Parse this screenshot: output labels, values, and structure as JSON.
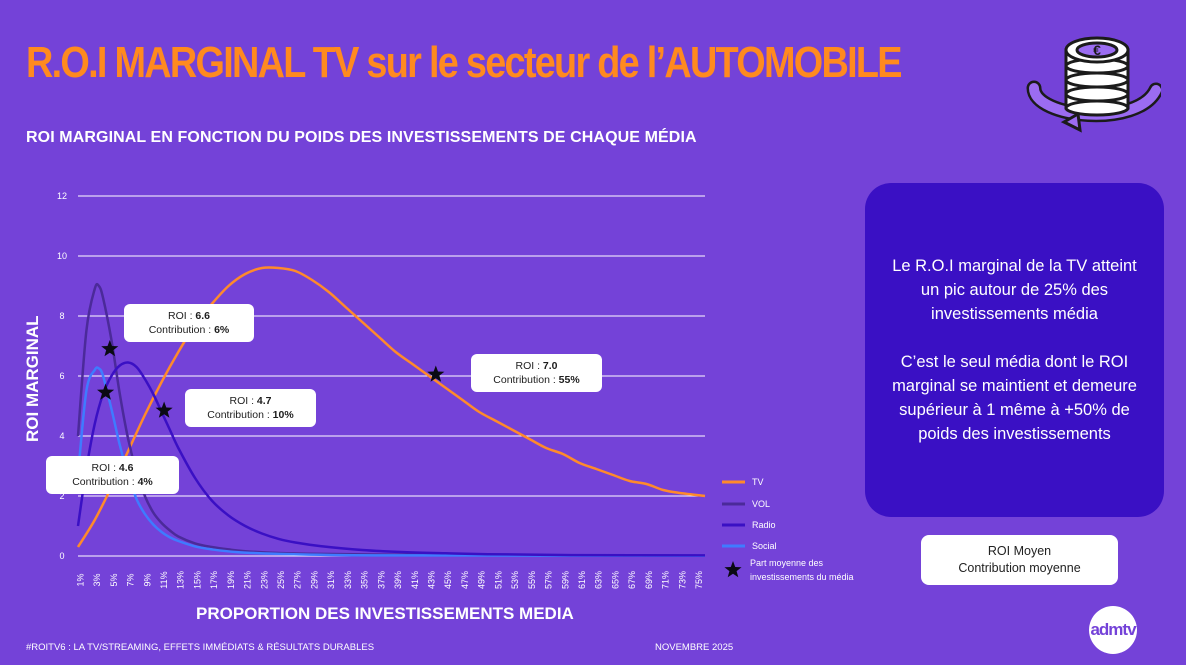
{
  "title": "R.O.I MARGINAL TV sur le secteur de l’AUTOMOBILE",
  "subtitle": "ROI MARGINAL EN FONCTION DU POIDS DES INVESTISSEMENTS DE CHAQUE MÉDIA",
  "chart_data": {
    "type": "line",
    "ylabel": "ROI MARGINAL",
    "xlabel": "PROPORTION DES INVESTISSEMENTS MEDIA",
    "ylim": [
      0,
      12
    ],
    "yticks": [
      0,
      2,
      4,
      6,
      8,
      10,
      12
    ],
    "x_tick_labels": [
      "1%",
      "3%",
      "5%",
      "7%",
      "9%",
      "11%",
      "13%",
      "15%",
      "17%",
      "19%",
      "21%",
      "23%",
      "25%",
      "27%",
      "29%",
      "31%",
      "33%",
      "35%",
      "37%",
      "39%",
      "41%",
      "43%",
      "45%",
      "47%",
      "49%",
      "51%",
      "53%",
      "55%",
      "57%",
      "59%",
      "61%",
      "63%",
      "65%",
      "67%",
      "69%",
      "71%",
      "73%",
      "75%"
    ],
    "xlim": [
      1,
      76
    ],
    "grid": true,
    "legend_position": "bottom-right",
    "series": [
      {
        "name": "TV",
        "color": "#FF8A2B",
        "x": [
          1,
          3,
          5,
          7,
          9,
          11,
          13,
          15,
          17,
          19,
          21,
          23,
          25,
          27,
          29,
          31,
          33,
          35,
          37,
          39,
          41,
          43,
          45,
          47,
          49,
          51,
          53,
          55,
          57,
          59,
          61,
          63,
          65,
          67,
          69,
          71,
          73,
          76
        ],
        "y": [
          0.3,
          1.2,
          2.3,
          3.5,
          4.7,
          5.8,
          6.8,
          7.7,
          8.4,
          9.0,
          9.4,
          9.6,
          9.6,
          9.5,
          9.2,
          8.8,
          8.3,
          7.8,
          7.3,
          6.8,
          6.4,
          6.0,
          5.6,
          5.2,
          4.8,
          4.5,
          4.2,
          3.9,
          3.6,
          3.4,
          3.1,
          2.9,
          2.7,
          2.5,
          2.4,
          2.2,
          2.1,
          2.0
        ]
      },
      {
        "name": "VOL",
        "color": "#4B2A9A",
        "x": [
          1,
          2,
          3,
          3.5,
          4,
          5,
          6,
          7,
          8,
          9,
          10,
          11,
          12,
          13,
          15,
          17,
          19,
          21,
          25,
          30,
          40,
          50,
          60,
          76
        ],
        "y": [
          4.0,
          7.5,
          8.9,
          9.0,
          8.6,
          7.2,
          5.4,
          3.9,
          2.8,
          2.0,
          1.45,
          1.1,
          0.85,
          0.65,
          0.42,
          0.3,
          0.22,
          0.16,
          0.1,
          0.07,
          0.04,
          0.03,
          0.02,
          0.01
        ]
      },
      {
        "name": "Radio",
        "color": "#3A10C4",
        "x": [
          1,
          2,
          3,
          4,
          5,
          6,
          7,
          8,
          9,
          10,
          11,
          12,
          13,
          15,
          17,
          19,
          21,
          23,
          25,
          27,
          30,
          35,
          40,
          45,
          50,
          60,
          76
        ],
        "y": [
          1.0,
          2.9,
          4.4,
          5.4,
          6.0,
          6.35,
          6.45,
          6.3,
          5.9,
          5.4,
          4.8,
          4.2,
          3.6,
          2.6,
          1.85,
          1.35,
          1.0,
          0.75,
          0.57,
          0.45,
          0.33,
          0.2,
          0.13,
          0.09,
          0.06,
          0.03,
          0.02
        ]
      },
      {
        "name": "Social",
        "color": "#3F7BFF",
        "x": [
          1,
          2,
          3,
          3.5,
          4,
          5,
          6,
          7,
          8,
          9,
          10,
          11,
          12,
          13,
          15,
          17,
          20,
          25,
          30,
          40,
          76
        ],
        "y": [
          2.7,
          5.5,
          6.2,
          6.25,
          6.0,
          4.9,
          3.7,
          2.7,
          1.9,
          1.4,
          1.05,
          0.8,
          0.62,
          0.5,
          0.32,
          0.22,
          0.13,
          0.07,
          0.04,
          0.02,
          0.01
        ]
      }
    ],
    "markers": [
      {
        "media": "VOL",
        "x": 4.8,
        "y": 6.9
      },
      {
        "media": "Social",
        "x": 4.3,
        "y": 5.45
      },
      {
        "media": "Radio",
        "x": 11.3,
        "y": 4.85
      },
      {
        "media": "TV",
        "x": 43.8,
        "y": 6.05
      }
    ],
    "marker_legend": "Part moyenne des investissements du média",
    "annotations": [
      {
        "roi_label": "ROI : ",
        "roi": "6.6",
        "contribution_label": "Contribution : ",
        "contribution": "6%"
      },
      {
        "roi_label": "ROI : ",
        "roi": "4.7",
        "contribution_label": "Contribution : ",
        "contribution": "10%"
      },
      {
        "roi_label": "ROI : ",
        "roi": "7.0",
        "contribution_label": "Contribution : ",
        "contribution": "55%"
      },
      {
        "roi_label": "ROI : ",
        "roi": "4.6",
        "contribution_label": "Contribution : ",
        "contribution": "4%"
      }
    ]
  },
  "info_box": {
    "paragraph1": "Le R.O.I marginal de la TV atteint un pic autour de 25% des investissements média",
    "paragraph2": "C’est le seul média dont le ROI marginal se maintient et demeure supérieur à 1 même à +50% de poids des investissements"
  },
  "roi_key": {
    "line1": "ROI Moyen",
    "line2": "Contribution moyenne"
  },
  "footer": {
    "left": "#ROITV6 : LA TV/STREAMING, EFFETS IMMÉDIATS & RÉSULTATS DURABLES",
    "right": "NOVEMBRE 2025"
  },
  "logo_text": "admtv",
  "coin_icon": "coins-stack-euro-icon",
  "colors": {
    "background": "#7442D8",
    "title": "#FF8A1F",
    "info_box": "#3A10C4"
  }
}
